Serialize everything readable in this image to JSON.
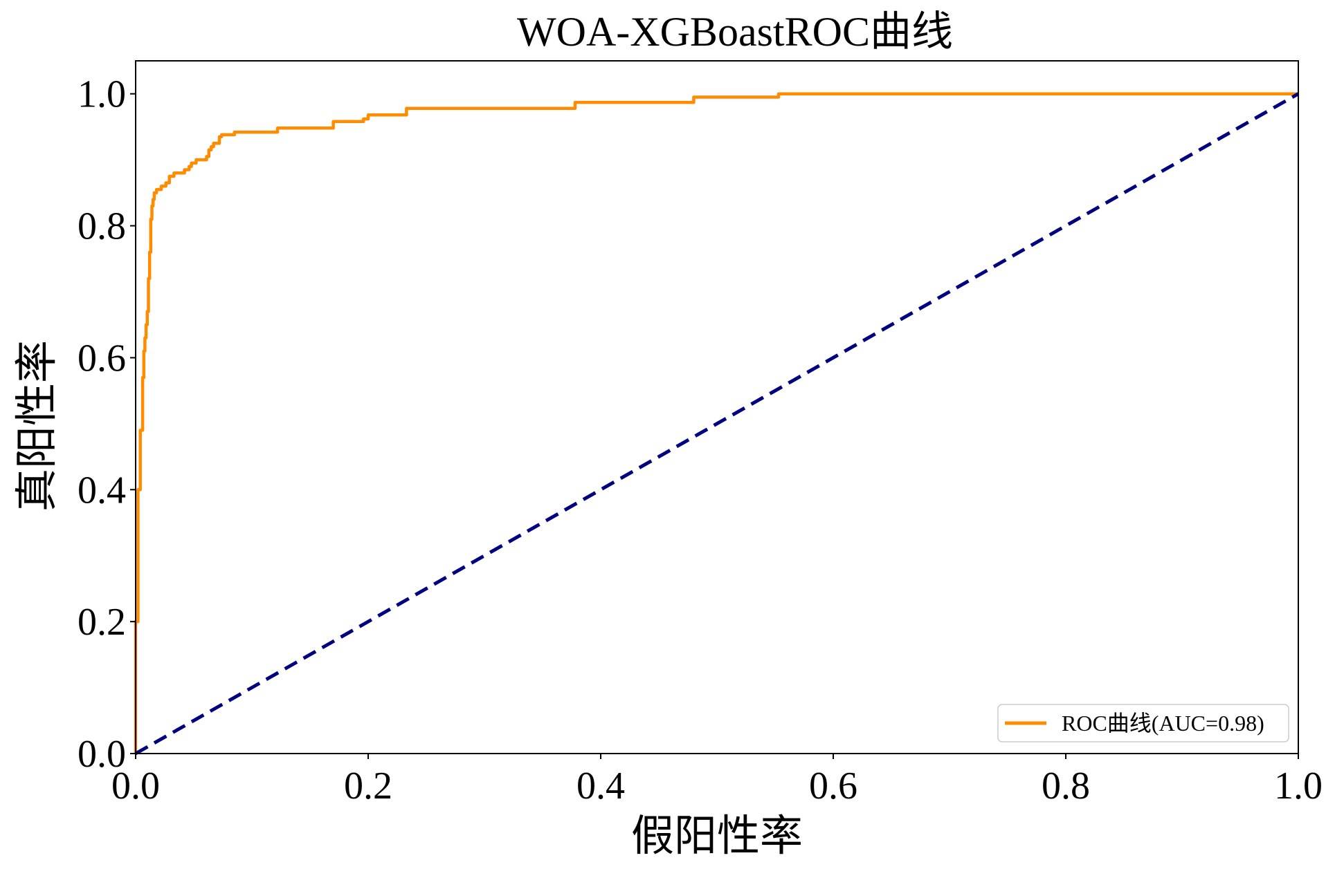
{
  "chart_data": {
    "type": "line",
    "title": "WOA-XGBoastROC曲线",
    "xlabel": "假阳性率",
    "ylabel": "真阳性率",
    "xlim": [
      0.0,
      1.0
    ],
    "ylim": [
      0.0,
      1.05
    ],
    "x_ticks": [
      "0.0",
      "0.2",
      "0.4",
      "0.6",
      "0.8",
      "1.0"
    ],
    "y_ticks": [
      "0.0",
      "0.2",
      "0.4",
      "0.6",
      "0.8",
      "1.0"
    ],
    "grid": false,
    "legend_position": "lower-right",
    "series": [
      {
        "name": "ROC曲线(AUC=0.98)",
        "color": "#ff8c00",
        "style": "solid",
        "points": [
          [
            0.0,
            0.0
          ],
          [
            0.0,
            0.2
          ],
          [
            0.002,
            0.2
          ],
          [
            0.002,
            0.4
          ],
          [
            0.004,
            0.4
          ],
          [
            0.004,
            0.49
          ],
          [
            0.006,
            0.49
          ],
          [
            0.006,
            0.57
          ],
          [
            0.007,
            0.57
          ],
          [
            0.007,
            0.61
          ],
          [
            0.008,
            0.61
          ],
          [
            0.008,
            0.63
          ],
          [
            0.009,
            0.63
          ],
          [
            0.009,
            0.65
          ],
          [
            0.01,
            0.65
          ],
          [
            0.01,
            0.67
          ],
          [
            0.011,
            0.67
          ],
          [
            0.011,
            0.72
          ],
          [
            0.012,
            0.72
          ],
          [
            0.012,
            0.76
          ],
          [
            0.013,
            0.76
          ],
          [
            0.013,
            0.81
          ],
          [
            0.014,
            0.81
          ],
          [
            0.014,
            0.83
          ],
          [
            0.015,
            0.83
          ],
          [
            0.015,
            0.84
          ],
          [
            0.016,
            0.84
          ],
          [
            0.016,
            0.85
          ],
          [
            0.018,
            0.85
          ],
          [
            0.018,
            0.855
          ],
          [
            0.022,
            0.855
          ],
          [
            0.022,
            0.86
          ],
          [
            0.026,
            0.86
          ],
          [
            0.026,
            0.865
          ],
          [
            0.029,
            0.865
          ],
          [
            0.029,
            0.875
          ],
          [
            0.033,
            0.875
          ],
          [
            0.033,
            0.88
          ],
          [
            0.042,
            0.88
          ],
          [
            0.042,
            0.885
          ],
          [
            0.046,
            0.885
          ],
          [
            0.046,
            0.89
          ],
          [
            0.048,
            0.89
          ],
          [
            0.048,
            0.895
          ],
          [
            0.052,
            0.895
          ],
          [
            0.052,
            0.9
          ],
          [
            0.061,
            0.9
          ],
          [
            0.061,
            0.905
          ],
          [
            0.063,
            0.905
          ],
          [
            0.063,
            0.915
          ],
          [
            0.065,
            0.915
          ],
          [
            0.065,
            0.92
          ],
          [
            0.067,
            0.92
          ],
          [
            0.067,
            0.925
          ],
          [
            0.072,
            0.925
          ],
          [
            0.072,
            0.935
          ],
          [
            0.074,
            0.935
          ],
          [
            0.074,
            0.938
          ],
          [
            0.085,
            0.938
          ],
          [
            0.085,
            0.942
          ],
          [
            0.122,
            0.942
          ],
          [
            0.122,
            0.948
          ],
          [
            0.17,
            0.948
          ],
          [
            0.17,
            0.958
          ],
          [
            0.196,
            0.958
          ],
          [
            0.196,
            0.962
          ],
          [
            0.2,
            0.962
          ],
          [
            0.2,
            0.968
          ],
          [
            0.233,
            0.968
          ],
          [
            0.233,
            0.978
          ],
          [
            0.378,
            0.978
          ],
          [
            0.378,
            0.987
          ],
          [
            0.48,
            0.987
          ],
          [
            0.48,
            0.995
          ],
          [
            0.553,
            0.995
          ],
          [
            0.553,
            1.0
          ],
          [
            1.0,
            1.0
          ]
        ]
      },
      {
        "color": "#000080",
        "style": "dashed",
        "points": [
          [
            0.0,
            0.0
          ],
          [
            1.0,
            1.0
          ]
        ]
      }
    ]
  }
}
